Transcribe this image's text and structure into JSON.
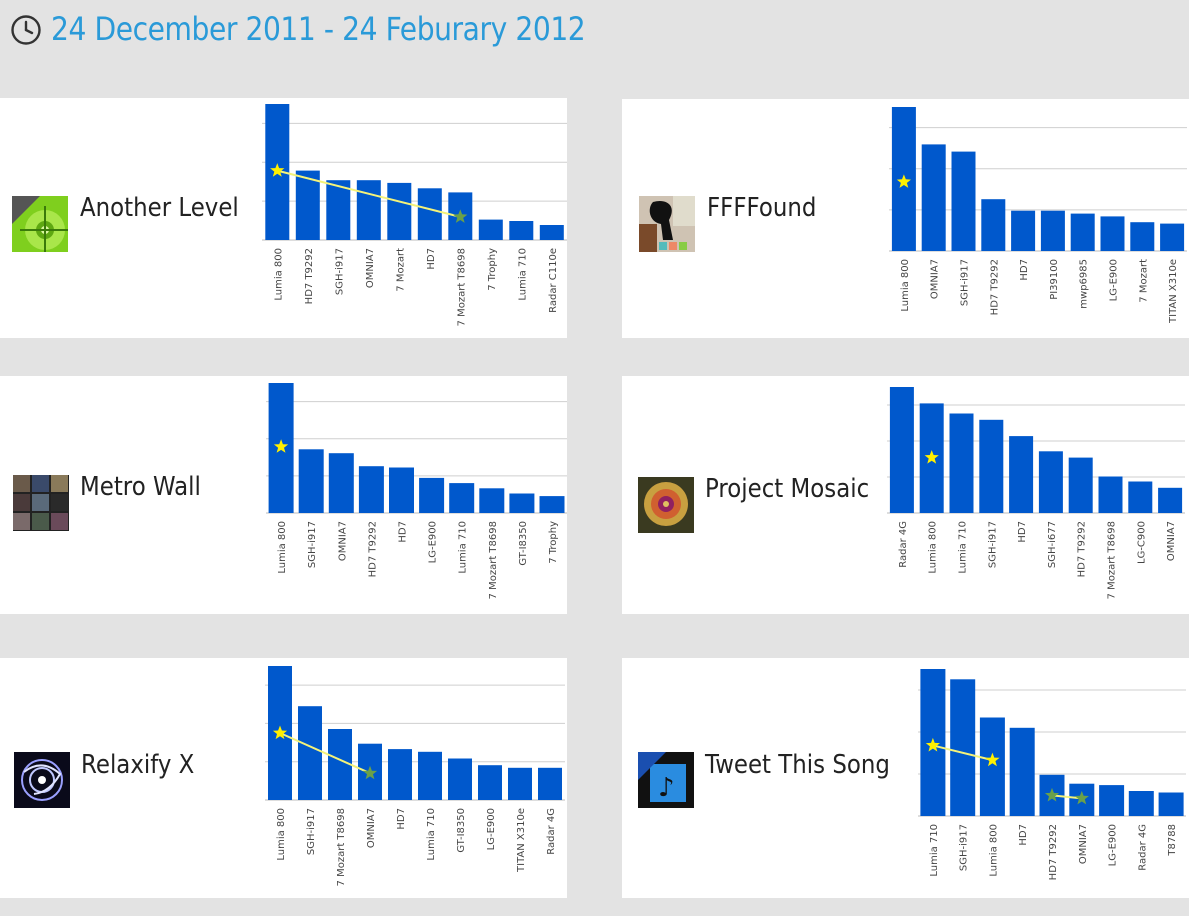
{
  "header": {
    "date_range": "24 December 2011 - 24 Feburary 2012"
  },
  "colors": {
    "bar": "#0058cc",
    "trend_line": "#f4f37a",
    "star": "#fff000",
    "star_faded": "#6aa04a",
    "title": "#2a9ad8",
    "grid": "#cfcfcf"
  },
  "chart_data": [
    {
      "type": "bar",
      "app_name": "Another Level",
      "categories": [
        "Lumia 800",
        "HD7 T9292",
        "SGH-i917",
        "OMNIA7",
        "7 Mozart",
        "HD7",
        "7 Mozart T8698",
        "7 Trophy",
        "Lumia 710",
        "Radar C110e"
      ],
      "values": [
        100,
        51,
        44,
        44,
        42,
        38,
        35,
        15,
        14,
        11
      ],
      "ylim": [
        0,
        100
      ],
      "icon": "spirit-level-free-icon",
      "stars": [
        {
          "index": 0,
          "value": 51,
          "faded": false
        },
        {
          "index": 6,
          "value": 17,
          "faded": true
        }
      ],
      "trend": true
    },
    {
      "type": "bar",
      "app_name": "FFFFound",
      "categories": [
        "Lumia 800",
        "OMNIA7",
        "SGH-i917",
        "HD7 T9292",
        "HD7",
        "PI39100",
        "mwp6985",
        "LG-E900",
        "7 Mozart",
        "TITAN X310e"
      ],
      "values": [
        100,
        74,
        69,
        36,
        28,
        28,
        26,
        24,
        20,
        19
      ],
      "ylim": [
        0,
        100
      ],
      "icon": "ffffound-photo-icon",
      "stars": [
        {
          "index": 0,
          "value": 48,
          "faded": false
        }
      ],
      "trend": false
    },
    {
      "type": "bar",
      "app_name": "Metro Wall",
      "categories": [
        "Lumia 800",
        "SGH-i917",
        "OMNIA7",
        "HD7 T9292",
        "HD7",
        "LG-E900",
        "Lumia 710",
        "7 Mozart T8698",
        "GT-I8350",
        "7 Trophy"
      ],
      "values": [
        100,
        49,
        46,
        36,
        35,
        27,
        23,
        19,
        15,
        13
      ],
      "ylim": [
        0,
        100
      ],
      "icon": "metro-wall-collage-icon",
      "stars": [
        {
          "index": 0,
          "value": 51,
          "faded": false
        }
      ],
      "trend": false
    },
    {
      "type": "bar",
      "app_name": "Project Mosaic",
      "categories": [
        "Radar 4G",
        "Lumia 800",
        "Lumia 710",
        "SGH-i917",
        "HD7",
        "SGH-i677",
        "HD7 T9292",
        "7 Mozart T8698",
        "LG-C900",
        "OMNIA7"
      ],
      "values": [
        100,
        87,
        79,
        74,
        61,
        49,
        44,
        29,
        25,
        20
      ],
      "ylim": [
        0,
        100
      ],
      "icon": "rose-mosaic-icon",
      "stars": [
        {
          "index": 1,
          "value": 44,
          "faded": false
        }
      ],
      "trend": false
    },
    {
      "type": "bar",
      "app_name": "Relaxify X",
      "categories": [
        "Lumia 800",
        "SGH-i917",
        "7 Mozart T8698",
        "OMNIA7",
        "HD7",
        "Lumia 710",
        "GT-I8350",
        "LG-E900",
        "TITAN X310e",
        "Radar 4G"
      ],
      "values": [
        100,
        70,
        53,
        42,
        38,
        36,
        31,
        26,
        24,
        24
      ],
      "ylim": [
        0,
        100
      ],
      "icon": "relaxify-swirl-icon",
      "stars": [
        {
          "index": 0,
          "value": 50,
          "faded": false
        },
        {
          "index": 3,
          "value": 20,
          "faded": true
        }
      ],
      "trend": true
    },
    {
      "type": "bar",
      "app_name": "Tweet This Song",
      "categories": [
        "Lumia 710",
        "SGH-i917",
        "Lumia 800",
        "HD7",
        "HD7 T9292",
        "OMNIA7",
        "LG-E900",
        "Radar 4G",
        "T8788"
      ],
      "values": [
        100,
        93,
        67,
        60,
        28,
        22,
        21,
        17,
        16
      ],
      "ylim": [
        0,
        100
      ],
      "icon": "music-note-free-icon",
      "stars": [
        {
          "index": 0,
          "value": 48,
          "faded": false
        },
        {
          "index": 2,
          "value": 38,
          "faded": false
        },
        {
          "index": 4,
          "value": 14,
          "faded": true
        },
        {
          "index": 5,
          "value": 12,
          "faded": true
        }
      ],
      "trend": true
    }
  ]
}
